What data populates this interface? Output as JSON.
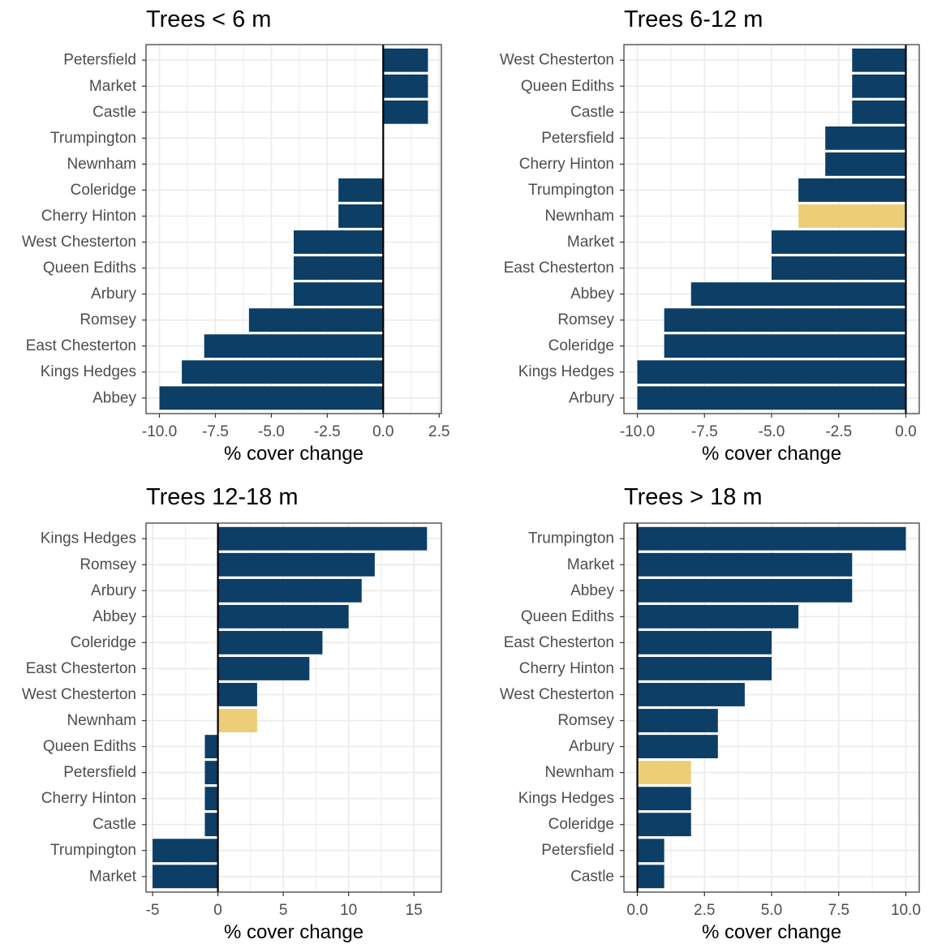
{
  "colors": {
    "bar": "#0c3e66",
    "highlight": "#ecce79",
    "grid": "#ebebeb",
    "panel_border": "#333333",
    "zero_line": "#000000"
  },
  "chart_data": [
    {
      "type": "bar",
      "orientation": "horizontal",
      "title": "Trees < 6 m",
      "xlabel": "% cover change",
      "xlim": [
        -10.6,
        2.6
      ],
      "xticks": [
        -10.0,
        -7.5,
        -5.0,
        -2.5,
        0.0,
        2.5
      ],
      "xtick_labels": [
        "-10.0",
        "-7.5",
        "-5.0",
        "-2.5",
        "0.0",
        "2.5"
      ],
      "categories": [
        "Petersfield",
        "Market",
        "Castle",
        "Trumpington",
        "Newnham",
        "Coleridge",
        "Cherry Hinton",
        "West Chesterton",
        "Queen Ediths",
        "Arbury",
        "Romsey",
        "East Chesterton",
        "Kings Hedges",
        "Abbey"
      ],
      "values": [
        2,
        2,
        2,
        0,
        0,
        -2,
        -2,
        -4,
        -4,
        -4,
        -6,
        -8,
        -9,
        -10
      ],
      "highlight": []
    },
    {
      "type": "bar",
      "orientation": "horizontal",
      "title": "Trees 6-12 m",
      "xlabel": "% cover change",
      "xlim": [
        -10.5,
        0.5
      ],
      "xticks": [
        -10.0,
        -7.5,
        -5.0,
        -2.5,
        0.0
      ],
      "xtick_labels": [
        "-10.0",
        "-7.5",
        "-5.0",
        "-2.5",
        "0.0"
      ],
      "categories": [
        "West Chesterton",
        "Queen Ediths",
        "Castle",
        "Petersfield",
        "Cherry Hinton",
        "Trumpington",
        "Newnham",
        "Market",
        "East Chesterton",
        "Abbey",
        "Romsey",
        "Coleridge",
        "Kings Hedges",
        "Arbury"
      ],
      "values": [
        -2,
        -2,
        -2,
        -3,
        -3,
        -4,
        -4,
        -5,
        -5,
        -8,
        -9,
        -9,
        -10,
        -10
      ],
      "highlight": [
        "Newnham"
      ]
    },
    {
      "type": "bar",
      "orientation": "horizontal",
      "title": "Trees 12-18 m",
      "xlabel": "% cover change",
      "xlim": [
        -5.5,
        17.1
      ],
      "xticks": [
        -5,
        0,
        5,
        10,
        15
      ],
      "xtick_labels": [
        "-5",
        "0",
        "5",
        "10",
        "15"
      ],
      "categories": [
        "Kings Hedges",
        "Romsey",
        "Arbury",
        "Abbey",
        "Coleridge",
        "East Chesterton",
        "West Chesterton",
        "Newnham",
        "Queen Ediths",
        "Petersfield",
        "Cherry Hinton",
        "Castle",
        "Trumpington",
        "Market"
      ],
      "values": [
        16,
        12,
        11,
        10,
        8,
        7,
        3,
        3,
        -1,
        -1,
        -1,
        -1,
        -5,
        -5
      ],
      "highlight": [
        "Newnham"
      ]
    },
    {
      "type": "bar",
      "orientation": "horizontal",
      "title": "Trees > 18 m",
      "xlabel": "% cover change",
      "xlim": [
        -0.5,
        10.5
      ],
      "xticks": [
        0.0,
        2.5,
        5.0,
        7.5,
        10.0
      ],
      "xtick_labels": [
        "0.0",
        "2.5",
        "5.0",
        "7.5",
        "10.0"
      ],
      "categories": [
        "Trumpington",
        "Market",
        "Abbey",
        "Queen Ediths",
        "East Chesterton",
        "Cherry Hinton",
        "West Chesterton",
        "Romsey",
        "Arbury",
        "Newnham",
        "Kings Hedges",
        "Coleridge",
        "Petersfield",
        "Castle"
      ],
      "values": [
        10,
        8,
        8,
        6,
        5,
        5,
        4,
        3,
        3,
        2,
        2,
        2,
        1,
        1
      ],
      "highlight": [
        "Newnham"
      ]
    }
  ]
}
